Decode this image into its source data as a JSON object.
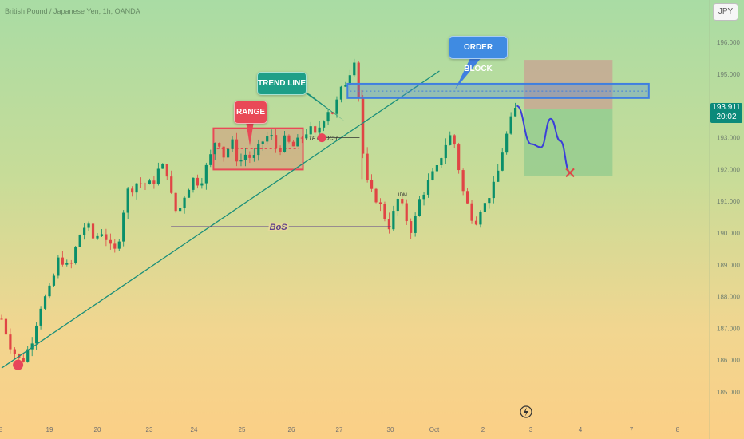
{
  "header": {
    "symbol_title": "British Pound / Japanese Yen, 1h, OANDA",
    "currency": "JPY"
  },
  "current_price": {
    "value": "193.911",
    "countdown": "20:02"
  },
  "annotations": {
    "range_label": "RANGE",
    "trend_label": "TREND LINE",
    "order_block_label": "ORDER BLOCK",
    "bos_label": "BoS",
    "choch_label": "LTF CHOCH",
    "idm_label": "IDM"
  },
  "colors": {
    "up_candle": "#0a8f6a",
    "down_candle": "#e04545",
    "trend_line": "#1b8f7a",
    "range_box": "#e94957",
    "order_block": "#3f7fe0",
    "projection_path": "#3b3fd9",
    "stop_zone": "#c8a291",
    "target_zone": "#7dc58a"
  },
  "chart_data": {
    "type": "candlestick",
    "instrument": "GBP/JPY",
    "timeframe": "1h",
    "x_tick_labels": [
      "8",
      "19",
      "20",
      "23",
      "24",
      "25",
      "26",
      "27",
      "30",
      "Oct",
      "2",
      "3",
      "4",
      "7",
      "8"
    ],
    "y_tick_labels": [
      "185.000",
      "186.000",
      "187.000",
      "188.000",
      "189.000",
      "190.000",
      "191.000",
      "192.000",
      "193.000",
      "194.000",
      "195.000",
      "196.000"
    ],
    "ylim": [
      184.3,
      196.6
    ],
    "last_price": 193.911,
    "grid": false,
    "price_path": [
      {
        "x": 0,
        "y": 187.3
      },
      {
        "x": 0.2,
        "y": 186.4
      },
      {
        "x": 0.4,
        "y": 185.9
      },
      {
        "x": 0.6,
        "y": 186.5
      },
      {
        "x": 0.8,
        "y": 187.7
      },
      {
        "x": 1.0,
        "y": 188.2
      },
      {
        "x": 1.2,
        "y": 189.3
      },
      {
        "x": 1.4,
        "y": 188.8
      },
      {
        "x": 1.6,
        "y": 189.9
      },
      {
        "x": 1.75,
        "y": 190.3
      },
      {
        "x": 1.9,
        "y": 189.8
      },
      {
        "x": 2.1,
        "y": 190.1
      },
      {
        "x": 2.3,
        "y": 189.3
      },
      {
        "x": 2.4,
        "y": 189.6
      },
      {
        "x": 2.5,
        "y": 190.6
      },
      {
        "x": 2.6,
        "y": 191.3
      },
      {
        "x": 2.8,
        "y": 191.6
      },
      {
        "x": 3.1,
        "y": 191.5
      },
      {
        "x": 3.25,
        "y": 192.0
      },
      {
        "x": 3.4,
        "y": 192.1
      },
      {
        "x": 3.55,
        "y": 190.8
      },
      {
        "x": 3.65,
        "y": 190.6
      },
      {
        "x": 3.8,
        "y": 191.3
      },
      {
        "x": 3.95,
        "y": 191.7
      },
      {
        "x": 4.1,
        "y": 191.6
      },
      {
        "x": 4.3,
        "y": 192.3
      },
      {
        "x": 4.45,
        "y": 193.1
      },
      {
        "x": 4.6,
        "y": 192.4
      },
      {
        "x": 4.75,
        "y": 192.9
      },
      {
        "x": 4.9,
        "y": 192.2
      },
      {
        "x": 5.05,
        "y": 192.5
      },
      {
        "x": 5.2,
        "y": 192.3
      },
      {
        "x": 5.4,
        "y": 192.9
      },
      {
        "x": 5.55,
        "y": 193.1
      },
      {
        "x": 5.7,
        "y": 192.6
      },
      {
        "x": 5.85,
        "y": 192.9
      },
      {
        "x": 6.05,
        "y": 192.7
      },
      {
        "x": 6.2,
        "y": 193.0
      },
      {
        "x": 6.35,
        "y": 193.3
      },
      {
        "x": 6.5,
        "y": 193.0
      },
      {
        "x": 6.6,
        "y": 193.5
      },
      {
        "x": 6.75,
        "y": 193.9
      },
      {
        "x": 6.85,
        "y": 193.8
      },
      {
        "x": 7.0,
        "y": 194.4
      },
      {
        "x": 7.15,
        "y": 194.9
      },
      {
        "x": 7.25,
        "y": 195.3
      },
      {
        "x": 7.32,
        "y": 195.7
      },
      {
        "x": 7.4,
        "y": 193.9
      },
      {
        "x": 7.5,
        "y": 191.9
      },
      {
        "x": 7.6,
        "y": 191.3
      },
      {
        "x": 7.75,
        "y": 191.1
      },
      {
        "x": 7.9,
        "y": 190.6
      },
      {
        "x": 8.0,
        "y": 190.2
      },
      {
        "x": 8.1,
        "y": 190.6
      },
      {
        "x": 8.2,
        "y": 191.1
      },
      {
        "x": 8.35,
        "y": 190.5
      },
      {
        "x": 8.5,
        "y": 190.0
      },
      {
        "x": 8.6,
        "y": 190.9
      },
      {
        "x": 8.75,
        "y": 191.4
      },
      {
        "x": 8.9,
        "y": 191.8
      },
      {
        "x": 9.0,
        "y": 192.0
      },
      {
        "x": 9.1,
        "y": 192.5
      },
      {
        "x": 9.2,
        "y": 192.9
      },
      {
        "x": 9.3,
        "y": 193.1
      },
      {
        "x": 9.4,
        "y": 192.6
      },
      {
        "x": 9.5,
        "y": 191.5
      },
      {
        "x": 9.6,
        "y": 191.0
      },
      {
        "x": 9.7,
        "y": 190.6
      },
      {
        "x": 9.8,
        "y": 190.4
      },
      {
        "x": 9.9,
        "y": 190.8
      },
      {
        "x": 10.0,
        "y": 190.9
      },
      {
        "x": 10.1,
        "y": 191.3
      },
      {
        "x": 10.2,
        "y": 191.5
      },
      {
        "x": 10.35,
        "y": 192.6
      },
      {
        "x": 10.5,
        "y": 193.4
      },
      {
        "x": 10.65,
        "y": 194.0
      }
    ],
    "zones": {
      "range": [
        192.0,
        193.3
      ],
      "order_block": [
        194.25,
        194.7
      ],
      "stop_zone": [
        193.9,
        195.45
      ],
      "target_zone": [
        191.8,
        193.9
      ],
      "bos_level": 190.2,
      "choch_level": 193.0
    },
    "projection": [
      {
        "x": 10.65,
        "y": 194.0
      },
      {
        "x": 10.95,
        "y": 192.8
      },
      {
        "x": 11.15,
        "y": 192.7
      },
      {
        "x": 11.35,
        "y": 193.6
      },
      {
        "x": 11.55,
        "y": 192.9
      },
      {
        "x": 11.75,
        "y": 191.9
      }
    ]
  }
}
